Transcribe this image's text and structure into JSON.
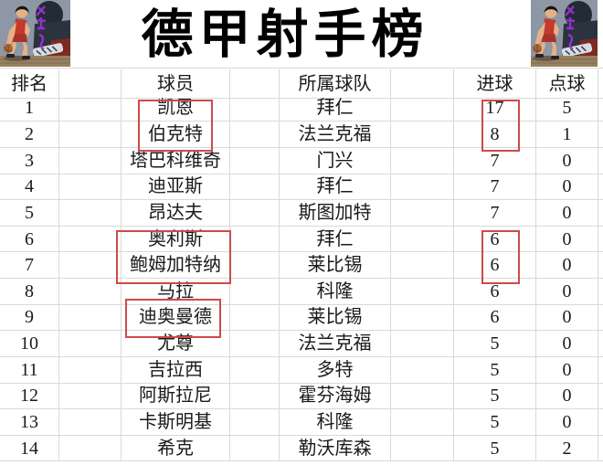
{
  "title": "德甲射手榜",
  "chart_data": {
    "type": "table",
    "title": "德甲射手榜",
    "columns": [
      "排名",
      "球员",
      "所属球队",
      "进球",
      "点球"
    ],
    "rows": [
      {
        "rank": "1",
        "player": "凯恩",
        "team": "拜仁",
        "goals": "17",
        "penalties": "5"
      },
      {
        "rank": "2",
        "player": "伯克特",
        "team": "法兰克福",
        "goals": "8",
        "penalties": "1"
      },
      {
        "rank": "3",
        "player": "塔巴科维奇",
        "team": "门兴",
        "goals": "7",
        "penalties": "0"
      },
      {
        "rank": "4",
        "player": "迪亚斯",
        "team": "拜仁",
        "goals": "7",
        "penalties": "0"
      },
      {
        "rank": "5",
        "player": "昂达夫",
        "team": "斯图加特",
        "goals": "7",
        "penalties": "0"
      },
      {
        "rank": "6",
        "player": "奥利斯",
        "team": "拜仁",
        "goals": "6",
        "penalties": "0"
      },
      {
        "rank": "7",
        "player": "鲍姆加特纳",
        "team": "莱比锡",
        "goals": "6",
        "penalties": "0"
      },
      {
        "rank": "8",
        "player": "马拉",
        "team": "科隆",
        "goals": "6",
        "penalties": "0"
      },
      {
        "rank": "9",
        "player": "迪奥曼德",
        "team": "莱比锡",
        "goals": "6",
        "penalties": "0"
      },
      {
        "rank": "10",
        "player": "尤尊",
        "team": "法兰克福",
        "goals": "5",
        "penalties": "0"
      },
      {
        "rank": "11",
        "player": "吉拉西",
        "team": "多特",
        "goals": "5",
        "penalties": "0"
      },
      {
        "rank": "12",
        "player": "阿斯拉尼",
        "team": "霍芬海姆",
        "goals": "5",
        "penalties": "0"
      },
      {
        "rank": "13",
        "player": "卡斯明基",
        "team": "科隆",
        "goals": "5",
        "penalties": "0"
      },
      {
        "rank": "14",
        "player": "希克",
        "team": "勒沃库森",
        "goals": "5",
        "penalties": "2"
      }
    ],
    "highlights": [
      {
        "column": "球员",
        "rows": "1-2"
      },
      {
        "column": "进球",
        "rows": "1-2"
      },
      {
        "column": "球员",
        "rows": "6-7"
      },
      {
        "column": "进球",
        "rows": "6-7"
      },
      {
        "column": "球员",
        "rows": "9"
      }
    ],
    "layout_hints": {
      "grid": "on",
      "highlight_color": "#cd4a4a",
      "gridline_color": "#d9d9d9"
    }
  },
  "decor": {
    "corner_art": "basketball-player-red-jersey",
    "colors": {
      "art_background": "#8d97a6",
      "jersey": "#c13a2c",
      "watermark": "#9d2fd6",
      "floor": "#96805f"
    }
  }
}
